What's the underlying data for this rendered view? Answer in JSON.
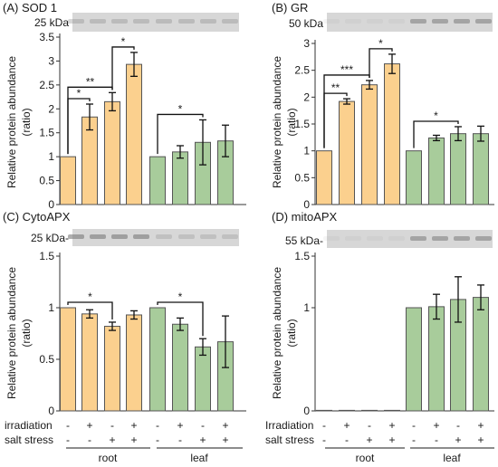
{
  "colors": {
    "root": "#FBD08E",
    "leaf": "#A8CC9B",
    "bar_edge": "#555555",
    "axis": "#333333",
    "text": "#1a1a1a",
    "blot_band": "#7a7a7a"
  },
  "chart_data": [
    {
      "id": "A",
      "type": "bar",
      "title": "(A) SOD 1",
      "blot_label": "25 kDa",
      "ylabel": "Relative protein abundance (ratio)",
      "ylim": [
        0,
        3.5
      ],
      "yticks": [
        0,
        0.5,
        1,
        1.5,
        2,
        2.5,
        3,
        3.5
      ],
      "ytick_labels": [
        "0",
        "0.5",
        "1",
        "1.5",
        "2",
        "2.5",
        "3",
        "3.5"
      ],
      "groups": [
        "root",
        "root",
        "root",
        "root",
        "leaf",
        "leaf",
        "leaf",
        "leaf"
      ],
      "values": [
        1.0,
        1.83,
        2.15,
        2.93,
        1.0,
        1.1,
        1.3,
        1.33
      ],
      "errors": [
        0,
        0.27,
        0.19,
        0.25,
        0,
        0.13,
        0.47,
        0.33
      ],
      "significance": [
        {
          "from": 0,
          "to": 1,
          "label": "*"
        },
        {
          "from": 0,
          "to": 2,
          "label": "**"
        },
        {
          "from": 2,
          "to": 3,
          "label": "*"
        },
        {
          "from": 4,
          "to": 6,
          "label": "*"
        }
      ]
    },
    {
      "id": "B",
      "type": "bar",
      "title": "(B) GR",
      "blot_label": "50 kDa",
      "ylabel": "Relative protein abundance (ratio)",
      "ylim": [
        0,
        3
      ],
      "yticks": [
        0,
        0.5,
        1,
        1.5,
        2,
        2.5,
        3
      ],
      "ytick_labels": [
        "0",
        "0.5",
        "1",
        "1.5",
        "2",
        "2.5",
        "3"
      ],
      "groups": [
        "root",
        "root",
        "root",
        "root",
        "leaf",
        "leaf",
        "leaf",
        "leaf"
      ],
      "values": [
        1.0,
        1.92,
        2.23,
        2.62,
        1.0,
        1.24,
        1.32,
        1.32
      ],
      "errors": [
        0,
        0.05,
        0.08,
        0.18,
        0,
        0.05,
        0.13,
        0.14
      ],
      "significance": [
        {
          "from": 0,
          "to": 1,
          "label": "**"
        },
        {
          "from": 0,
          "to": 2,
          "label": "***"
        },
        {
          "from": 2,
          "to": 3,
          "label": "*"
        },
        {
          "from": 4,
          "to": 6,
          "label": "*"
        }
      ]
    },
    {
      "id": "C",
      "type": "bar",
      "title": "(C) CytoAPX",
      "blot_label": "25 kDa-",
      "ylabel": "Relative protein abundance (ratio)",
      "ylim": [
        0,
        1.5
      ],
      "yticks": [
        0,
        0.5,
        1,
        1.5
      ],
      "ytick_labels": [
        "0",
        "0.5",
        "1",
        "1.5"
      ],
      "groups": [
        "root",
        "root",
        "root",
        "root",
        "leaf",
        "leaf",
        "leaf",
        "leaf"
      ],
      "values": [
        1.0,
        0.94,
        0.82,
        0.93,
        1.0,
        0.84,
        0.62,
        0.67
      ],
      "errors": [
        0,
        0.04,
        0.04,
        0.04,
        0,
        0.06,
        0.08,
        0.25
      ],
      "significance": [
        {
          "from": 0,
          "to": 2,
          "label": "*"
        },
        {
          "from": 4,
          "to": 6,
          "label": "*"
        }
      ]
    },
    {
      "id": "D",
      "type": "bar",
      "title": "(D) mitoAPX",
      "blot_label": "55 kDa-",
      "ylabel": "Relative protein abundance (ratio)",
      "ylim": [
        0,
        1.5
      ],
      "yticks": [
        0,
        1,
        1.5
      ],
      "ytick_labels": [
        "0",
        "1",
        "1.5"
      ],
      "groups": [
        "root",
        "root",
        "root",
        "root",
        "leaf",
        "leaf",
        "leaf",
        "leaf"
      ],
      "values": [
        0,
        0,
        0,
        0,
        1.0,
        1.01,
        1.08,
        1.1
      ],
      "errors": [
        0,
        0,
        0,
        0,
        0,
        0.12,
        0.22,
        0.12
      ],
      "significance": []
    }
  ],
  "treatments": {
    "irradiation_label_left": "irradiation",
    "irradiation_label_right": "Irradiation",
    "salt_label": "salt stress",
    "irradiation": [
      "-",
      "+",
      "-",
      "+",
      "-",
      "+",
      "-",
      "+"
    ],
    "salt": [
      "-",
      "-",
      "+",
      "+",
      "-",
      "-",
      "+",
      "+"
    ],
    "root_label": "root",
    "leaf_label": "leaf"
  }
}
